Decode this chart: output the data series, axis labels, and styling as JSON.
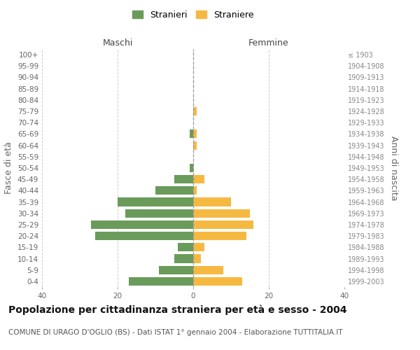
{
  "age_groups": [
    "0-4",
    "5-9",
    "10-14",
    "15-19",
    "20-24",
    "25-29",
    "30-34",
    "35-39",
    "40-44",
    "45-49",
    "50-54",
    "55-59",
    "60-64",
    "65-69",
    "70-74",
    "75-79",
    "80-84",
    "85-89",
    "90-94",
    "95-99",
    "100+"
  ],
  "birth_years": [
    "1999-2003",
    "1994-1998",
    "1989-1993",
    "1984-1988",
    "1979-1983",
    "1974-1978",
    "1969-1973",
    "1964-1968",
    "1959-1963",
    "1954-1958",
    "1949-1953",
    "1944-1948",
    "1939-1943",
    "1934-1938",
    "1929-1933",
    "1924-1928",
    "1919-1923",
    "1914-1918",
    "1909-1913",
    "1904-1908",
    "≤ 1903"
  ],
  "males": [
    17,
    9,
    5,
    4,
    26,
    27,
    18,
    20,
    10,
    5,
    1,
    0,
    0,
    1,
    0,
    0,
    0,
    0,
    0,
    0,
    0
  ],
  "females": [
    13,
    8,
    2,
    3,
    14,
    16,
    15,
    10,
    1,
    3,
    0,
    0,
    1,
    1,
    0,
    1,
    0,
    0,
    0,
    0,
    0
  ],
  "male_color": "#6a9b5a",
  "female_color": "#f5b942",
  "background_color": "#ffffff",
  "grid_color": "#cccccc",
  "title": "Popolazione per cittadinanza straniera per età e sesso - 2004",
  "subtitle": "COMUNE DI URAGO D'OGLIO (BS) - Dati ISTAT 1° gennaio 2004 - Elaborazione TUTTITALIA.IT",
  "ylabel_left": "Fasce di età",
  "ylabel_right": "Anni di nascita",
  "xlabel_left": "Maschi",
  "xlabel_right": "Femmine",
  "legend_male": "Stranieri",
  "legend_female": "Straniere",
  "xlim": 40,
  "title_fontsize": 10,
  "subtitle_fontsize": 7.5,
  "label_fontsize": 9,
  "tick_fontsize": 7.5
}
